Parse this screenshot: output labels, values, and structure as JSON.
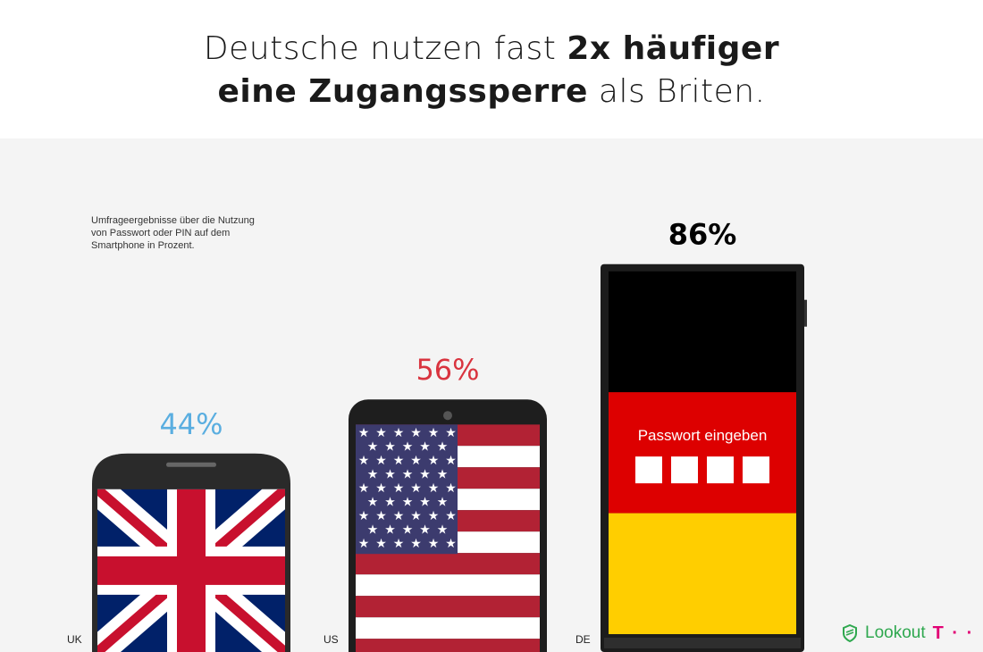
{
  "header": {
    "line1_a": "Deutsche nutzen fast ",
    "line1_b": "2x häufiger",
    "line2_a": "eine Zugangssperre",
    "line2_b": " als Briten."
  },
  "subtitle": "Umfrageergebnisse über die Nutzung von Passwort oder PIN auf dem Smartphone in Prozent.",
  "chart_data": {
    "type": "bar",
    "categories": [
      "UK",
      "US",
      "DE"
    ],
    "values": [
      44,
      56,
      86
    ],
    "value_labels": [
      "44%",
      "56%",
      "86%"
    ],
    "colors": [
      "#5aaee0",
      "#d9343f",
      "#000000"
    ],
    "ylim": [
      0,
      100
    ]
  },
  "de_screen": {
    "prompt": "Passwort eingeben"
  },
  "branding": {
    "lookout": "Lookout",
    "telekom": "T · ·",
    "lookout_color": "#2fa84f",
    "telekom_color": "#e20074"
  }
}
